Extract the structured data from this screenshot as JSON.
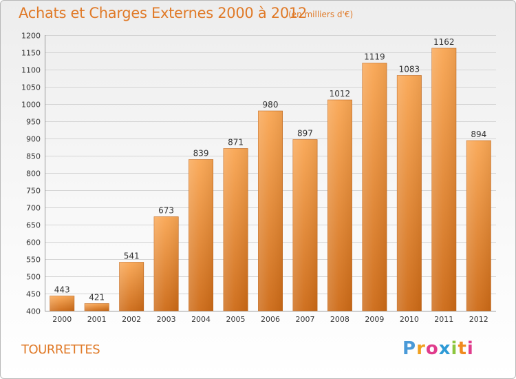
{
  "title": "Achats et Charges Externes 2000 à 2012",
  "subtitle": "(en milliers d'€)",
  "commune": "TOURRETTES",
  "logo": {
    "text": "Proxiti"
  },
  "colors": {
    "bar_light": "#f9a653",
    "bar_dark": "#cd6a16",
    "accent": "#e07a28",
    "grid": "#d4d4d4"
  },
  "chart_data": {
    "type": "bar",
    "title": "Achats et Charges Externes 2000 à 2012",
    "subtitle": "(en milliers d'€)",
    "xlabel": "",
    "ylabel": "",
    "ylim": [
      400,
      1200
    ],
    "yticks": [
      400,
      450,
      500,
      550,
      600,
      650,
      700,
      750,
      800,
      850,
      900,
      950,
      1000,
      1050,
      1100,
      1150,
      1200
    ],
    "categories": [
      "2000",
      "2001",
      "2002",
      "2003",
      "2004",
      "2005",
      "2006",
      "2007",
      "2008",
      "2009",
      "2010",
      "2011",
      "2012"
    ],
    "values": [
      443,
      421,
      541,
      673,
      839,
      871,
      980,
      897,
      1012,
      1119,
      1083,
      1162,
      894
    ],
    "grid": true,
    "data_labels": true
  }
}
